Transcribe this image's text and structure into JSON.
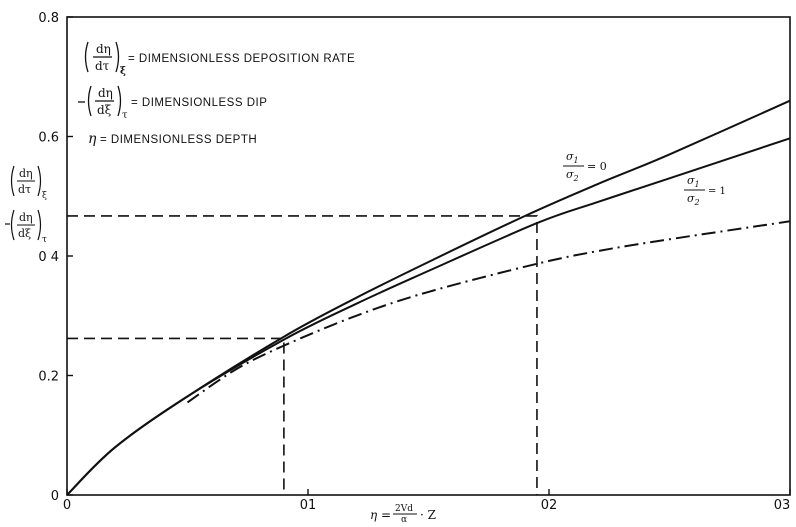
{
  "chart_data": {
    "type": "line",
    "xlim": [
      0,
      0.03
    ],
    "ylim": [
      0,
      0.8
    ],
    "x_ticks": [
      {
        "value": 0,
        "label": "0"
      },
      {
        "value": 0.01,
        "label": "01"
      },
      {
        "value": 0.02,
        "label": "02"
      },
      {
        "value": 0.03,
        "label": "03"
      }
    ],
    "y_ticks": [
      {
        "value": 0,
        "label": "0"
      },
      {
        "value": 0.2,
        "label": "0.2"
      },
      {
        "value": 0.4,
        "label": "0 4"
      },
      {
        "value": 0.6,
        "label": "0.6"
      },
      {
        "value": 0.8,
        "label": "0.8"
      }
    ],
    "xlabel": "η = 2Vd/α · Z",
    "ylabel": "(dη/dτ)ξ, −(dη/dξ)τ",
    "legend": [
      {
        "symbol": "(dη/dτ)ξ",
        "text": "DIMENSIONLESS DEPOSITION RATE"
      },
      {
        "symbol": "−(dη/dξ)τ",
        "text": "DIMENSIONLESS DIP"
      },
      {
        "symbol": "η",
        "text": "DIMENSIONLESS DEPTH"
      }
    ],
    "series": [
      {
        "name": "σ1/σ2 = 0",
        "style": "solid",
        "x": [
          0,
          0.002,
          0.005,
          0.009,
          0.012,
          0.015,
          0.019,
          0.022,
          0.025,
          0.03
        ],
        "y": [
          0,
          0.08,
          0.165,
          0.265,
          0.33,
          0.39,
          0.467,
          0.52,
          0.57,
          0.66
        ]
      },
      {
        "name": "σ1/σ2 = 1",
        "style": "solid",
        "x": [
          0,
          0.002,
          0.005,
          0.009,
          0.012,
          0.015,
          0.0195,
          0.022,
          0.025,
          0.03
        ],
        "y": [
          0,
          0.08,
          0.165,
          0.26,
          0.32,
          0.375,
          0.455,
          0.49,
          0.53,
          0.597
        ]
      },
      {
        "name": "",
        "style": "dash-dot",
        "x": [
          0.005,
          0.007,
          0.009,
          0.012,
          0.015,
          0.0195,
          0.022,
          0.025,
          0.03
        ],
        "y": [
          0.155,
          0.21,
          0.25,
          0.3,
          0.34,
          0.387,
          0.408,
          0.428,
          0.458
        ]
      }
    ],
    "guides": [
      {
        "x": 0.009,
        "y": 0.262
      },
      {
        "x": 0.0195,
        "y": 0.467
      }
    ],
    "annotations": [
      {
        "text": "σ1/σ2 = 0",
        "x": 0.0205,
        "y": 0.515
      },
      {
        "text": "σ1/σ2 = 1",
        "x": 0.0258,
        "y": 0.455
      }
    ]
  }
}
